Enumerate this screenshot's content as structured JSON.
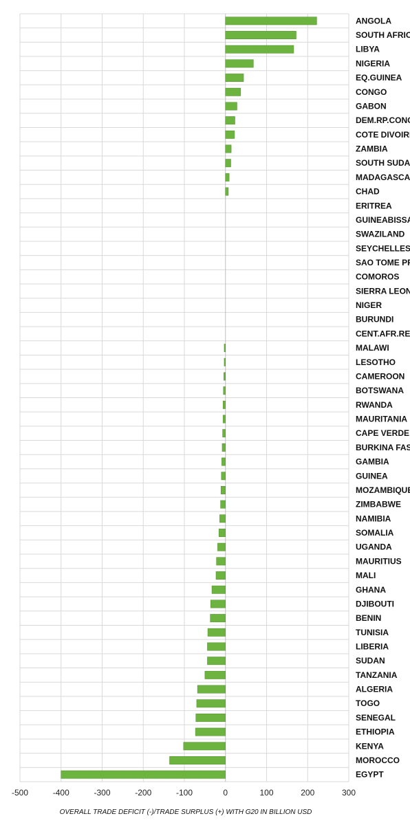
{
  "chart_data": {
    "type": "bar",
    "orientation": "horizontal",
    "title": "",
    "xlabel": "OVERALL TRADE DEFICIT (-)/TRADE SURPLUS (+) WITH G20 IN BILLION USD",
    "ylabel": "",
    "xlim": [
      -500,
      300
    ],
    "xticks": [
      -500,
      -400,
      -300,
      -200,
      -100,
      0,
      100,
      200,
      300
    ],
    "grid": true,
    "legend": "none",
    "bar_color": "#6db33f",
    "categories": [
      "ANGOLA",
      "SOUTH AFRICA",
      "LIBYA",
      "NIGERIA",
      "EQ.GUINEA",
      "CONGO",
      "GABON",
      "DEM.RP.CONGO",
      "COTE DIVOIRE",
      "ZAMBIA",
      "SOUTH SUDAN",
      "MADAGASCAR",
      "CHAD",
      "ERITREA",
      "GUINEABISSAU",
      "SWAZILAND",
      "SEYCHELLES",
      "SAO TOME PRN",
      "COMOROS",
      "SIERRA LEONE",
      "NIGER",
      "BURUNDI",
      "CENT.AFR.REP",
      "MALAWI",
      "LESOTHO",
      "CAMEROON",
      "BOTSWANA",
      "RWANDA",
      "MAURITANIA",
      "CAPE VERDE",
      "BURKINA FASO",
      "GAMBIA",
      "GUINEA",
      "MOZAMBIQUE",
      "ZIMBABWE",
      "NAMIBIA",
      "SOMALIA",
      "UGANDA",
      "MAURITIUS",
      "MALI",
      "GHANA",
      "DJIBOUTI",
      "BENIN",
      "TUNISIA",
      "LIBERIA",
      "SUDAN",
      "TANZANIA",
      "ALGERIA",
      "TOGO",
      "SENEGAL",
      "ETHIOPIA",
      "KENYA",
      "MOROCCO",
      "EGYPT"
    ],
    "values": [
      222,
      172,
      166,
      68,
      44,
      37,
      28,
      23,
      22,
      14,
      13,
      9,
      7,
      0,
      0,
      0,
      0,
      0,
      0,
      0,
      0,
      0,
      0,
      -3,
      -3,
      -4,
      -5,
      -6,
      -6,
      -7,
      -8,
      -9,
      -10,
      -11,
      -12,
      -14,
      -16,
      -19,
      -22,
      -23,
      -33,
      -36,
      -37,
      -43,
      -44,
      -44,
      -50,
      -68,
      -70,
      -72,
      -73,
      -102,
      -136,
      -400
    ]
  }
}
